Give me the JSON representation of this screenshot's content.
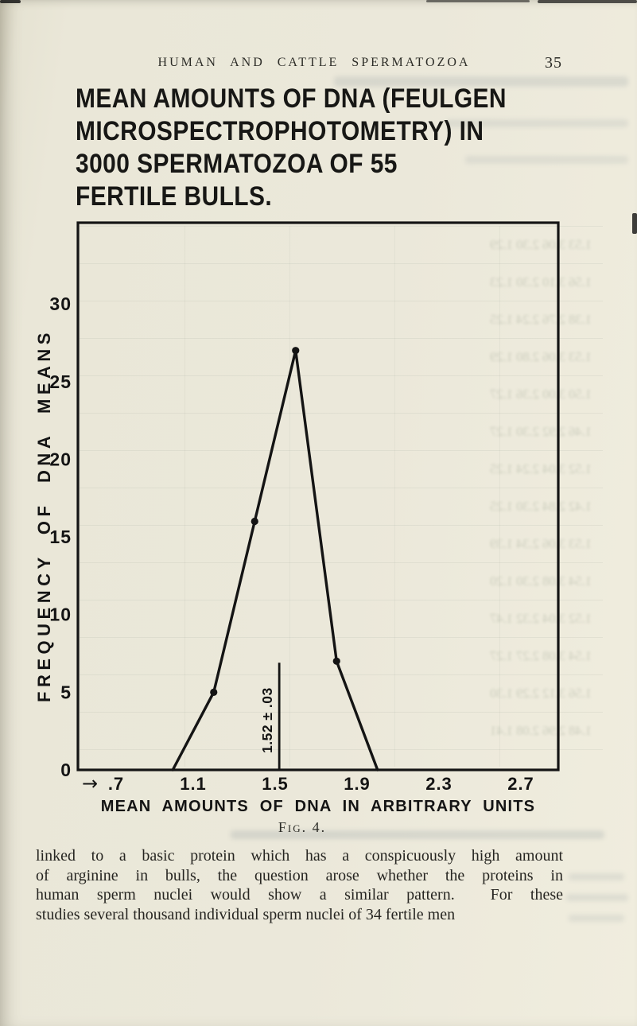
{
  "page": {
    "running_head": "HUMAN AND CATTLE SPERMATOZOA",
    "page_number": "35"
  },
  "title": {
    "lines": [
      "MEAN AMOUNTS OF DNA (FEULGEN",
      "MICROSPECTROPHOTOMETRY) IN",
      "3000 SPERMATOZOA OF 55",
      "FERTILE BULLS."
    ]
  },
  "chart_data": {
    "type": "line",
    "title": "MEAN AMOUNTS OF DNA (FEULGEN MICROSPECTROPHOTOMETRY) IN 3000 SPERMATOZOA OF 55 FERTILE BULLS.",
    "xlabel": "MEAN AMOUNTS OF DNA IN ARBITRARY UNITS",
    "ylabel": "FREQUENCY OF DNA MEANS",
    "x": [
      1.0,
      1.2,
      1.4,
      1.6,
      1.8,
      2.0
    ],
    "values": [
      0,
      5,
      16,
      27,
      7,
      0
    ],
    "point_markers": [
      false,
      true,
      true,
      true,
      true,
      false
    ],
    "x_ticks": {
      "labels": [
        ".7",
        "1.1",
        "1.5",
        "1.9",
        "2.3",
        "2.7"
      ],
      "values": [
        0.7,
        1.1,
        1.5,
        1.9,
        2.3,
        2.7
      ]
    },
    "y_ticks": {
      "labels": [
        "0",
        "5",
        "10",
        "15",
        "20",
        "25",
        "30"
      ],
      "values": [
        0,
        5,
        10,
        15,
        20,
        25,
        30
      ]
    },
    "xlim": [
      0.54,
      2.88
    ],
    "ylim": [
      0,
      35.2
    ],
    "grid": false,
    "legend": "none",
    "line_color": "#141414",
    "x_axis_arrow": "→",
    "mean_annotation": {
      "label": "1.52 ± .03",
      "x": 1.52,
      "line_top_value": 6.9
    },
    "caption": "Fig. 4."
  },
  "body": {
    "lines": [
      "linked to a basic protein which has a conspicuously high amount",
      "of arginine in bulls, the question arose whether the proteins in",
      "human sperm nuclei would show a similar pattern.  For these",
      "studies several thousand individual sperm nuclei of 34 fertile men"
    ]
  },
  "ghost": {
    "plot_rows": [
      "1.53   3.06   2.30   1.29",
      "1.56   3.10   2.30   1.23",
      "1.38   2.76   2.24   1.25",
      "1.53   3.06   2.80   1.29",
      "1.50   3.00   2.36   1.27",
      "1.46   2.92   2.30   1.27",
      "1.52   3.04   2.24   1.25",
      "1.42   2.84   2.30   1.25",
      "1.53   3.06   2.34   1.39",
      "1.54   3.08   2.30   1.20",
      "1.52   3.04   2.32   1.47",
      "1.54   3.08   2.27   1.27",
      "1.56   3.12   2.29   1.30",
      "1.48   2.96   2.08   1.41"
    ]
  }
}
